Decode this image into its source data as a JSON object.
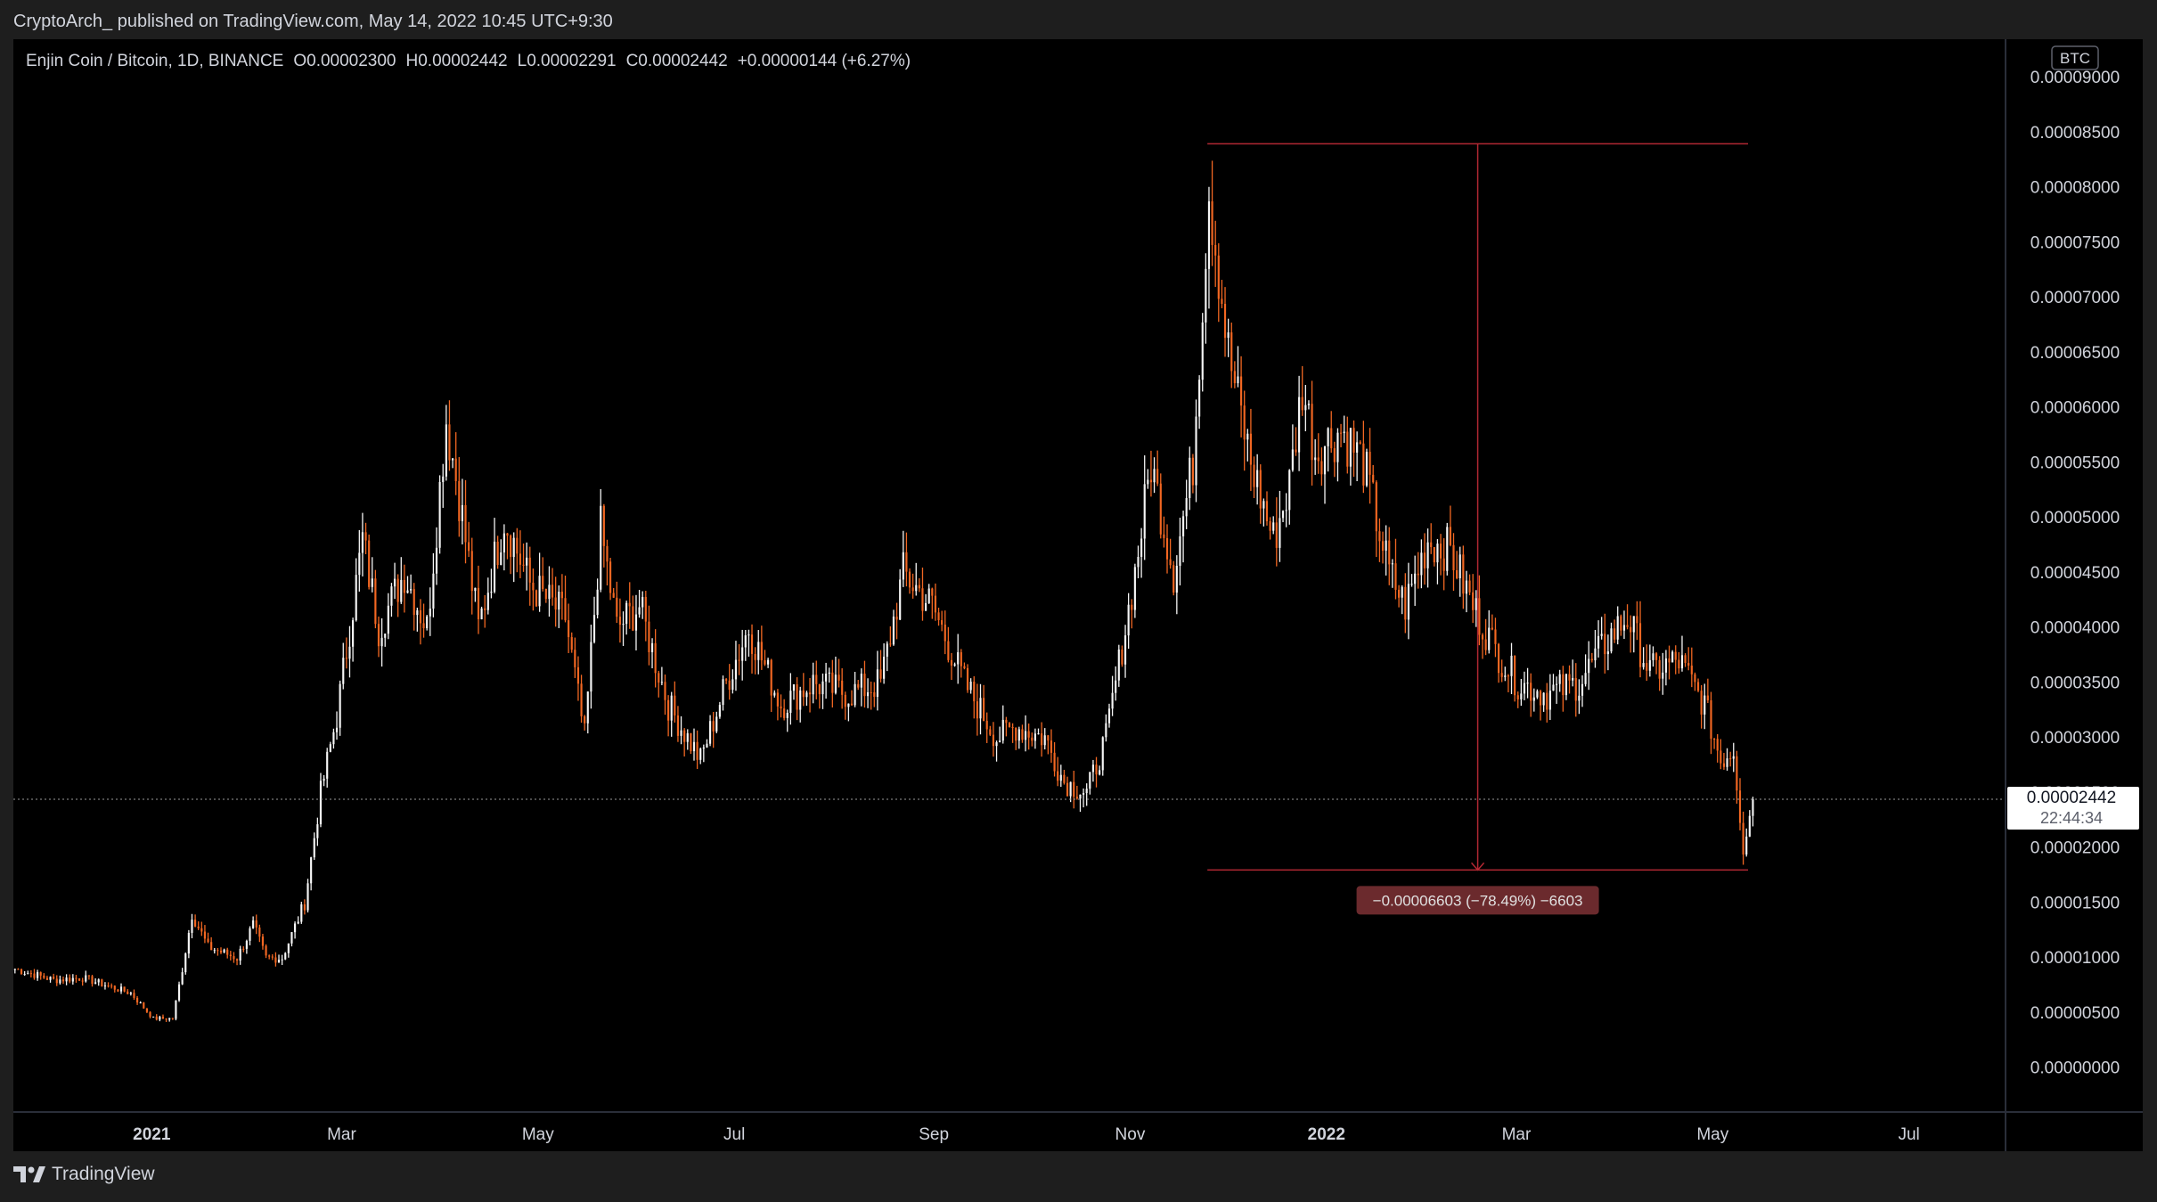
{
  "header": {
    "published_text": "CryptoArch_ published on TradingView.com, May 14, 2022 10:45 UTC+9:30"
  },
  "legend": {
    "symbol": "Enjin Coin / Bitcoin, 1D, BINANCE",
    "open": "O0.00002300",
    "high": "H0.00002442",
    "low": "L0.00002291",
    "close": "C0.00002442",
    "change": "+0.00000144 (+6.27%)"
  },
  "price_scale": {
    "currency_badge": "BTC",
    "labels": [
      "0.00009000",
      "0.00008500",
      "0.00008000",
      "0.00007500",
      "0.00007000",
      "0.00006500",
      "0.00006000",
      "0.00005500",
      "0.00005000",
      "0.00004500",
      "0.00004000",
      "0.00003500",
      "0.00003000",
      "0.00002500",
      "0.00002000",
      "0.00001500",
      "0.00001000",
      "0.00000500",
      "0.00000000"
    ],
    "last_price_label": "0.00002442",
    "countdown_label": "22:44:34"
  },
  "time_scale": {
    "labels": [
      {
        "text": "2021",
        "bold": true
      },
      {
        "text": "Mar",
        "bold": false
      },
      {
        "text": "May",
        "bold": false
      },
      {
        "text": "Jul",
        "bold": false
      },
      {
        "text": "Sep",
        "bold": false
      },
      {
        "text": "Nov",
        "bold": false
      },
      {
        "text": "2022",
        "bold": true
      },
      {
        "text": "Mar",
        "bold": false
      },
      {
        "text": "May",
        "bold": false
      },
      {
        "text": "Jul",
        "bold": false
      }
    ]
  },
  "measure_tool": {
    "label": "−0.00006603 (−78.49%) −6603",
    "top_price": 8.4e-05,
    "bottom_price": 1.8e-05,
    "color": "#b22833"
  },
  "footer": {
    "brand": "TradingView"
  },
  "colors": {
    "up": "#f5f5f5",
    "down": "#f26722",
    "background": "#000000",
    "frame": "#1e1e1e",
    "text": "#d1d4dc"
  },
  "chart_data": {
    "type": "candlestick",
    "title": "Enjin Coin / Bitcoin, 1D, BINANCE",
    "y_unit": "BTC",
    "ylim": [
      -4e-06,
      9.35e-05
    ],
    "x_range": [
      "2020-11-19",
      "2022-07-31"
    ],
    "interval": "1D",
    "last_close": 2.442e-05,
    "grid": false,
    "keypoints": [
      [
        "2020-11-19",
        9e-06
      ],
      [
        "2020-12-01",
        8e-06
      ],
      [
        "2020-12-10",
        8.2e-06
      ],
      [
        "2020-12-25",
        6.8e-06
      ],
      [
        "2021-01-01",
        4.5e-06
      ],
      [
        "2021-01-07",
        4.5e-06
      ],
      [
        "2021-01-10",
        9e-06
      ],
      [
        "2021-01-13",
        1.4e-05
      ],
      [
        "2021-01-18",
        1.1e-05
      ],
      [
        "2021-01-27",
        1e-05
      ],
      [
        "2021-02-01",
        1.3e-05
      ],
      [
        "2021-02-05",
        1e-05
      ],
      [
        "2021-02-10",
        1e-05
      ],
      [
        "2021-02-17",
        1.5e-05
      ],
      [
        "2021-02-22",
        2.5e-05
      ],
      [
        "2021-02-27",
        3.2e-05
      ],
      [
        "2021-03-07",
        4.8e-05
      ],
      [
        "2021-03-12",
        4e-05
      ],
      [
        "2021-03-20",
        4.5e-05
      ],
      [
        "2021-03-27",
        4e-05
      ],
      [
        "2021-04-02",
        5.9e-05
      ],
      [
        "2021-04-06",
        5.2e-05
      ],
      [
        "2021-04-12",
        4e-05
      ],
      [
        "2021-04-20",
        5e-05
      ],
      [
        "2021-04-28",
        4.4e-05
      ],
      [
        "2021-05-09",
        4.1e-05
      ],
      [
        "2021-05-15",
        3e-05
      ],
      [
        "2021-05-20",
        4.9e-05
      ],
      [
        "2021-05-25",
        4e-05
      ],
      [
        "2021-06-01",
        4.2e-05
      ],
      [
        "2021-06-10",
        3.3e-05
      ],
      [
        "2021-06-20",
        2.8e-05
      ],
      [
        "2021-06-28",
        3.5e-05
      ],
      [
        "2021-07-05",
        4e-05
      ],
      [
        "2021-07-15",
        3.3e-05
      ],
      [
        "2021-07-25",
        3.5e-05
      ],
      [
        "2021-08-05",
        3.4e-05
      ],
      [
        "2021-08-15",
        3.5e-05
      ],
      [
        "2021-08-22",
        4.5e-05
      ],
      [
        "2021-08-31",
        4.2e-05
      ],
      [
        "2021-09-10",
        3.5e-05
      ],
      [
        "2021-09-20",
        3e-05
      ],
      [
        "2021-09-26",
        3.1e-05
      ],
      [
        "2021-10-05",
        3e-05
      ],
      [
        "2021-10-11",
        2.6e-05
      ],
      [
        "2021-10-18",
        2.5e-05
      ],
      [
        "2021-10-24",
        3e-05
      ],
      [
        "2021-11-02",
        4.5e-05
      ],
      [
        "2021-11-07",
        5.5e-05
      ],
      [
        "2021-11-14",
        4.5e-05
      ],
      [
        "2021-11-20",
        5.5e-05
      ],
      [
        "2021-11-25",
        8e-05
      ],
      [
        "2021-12-01",
        6.5e-05
      ],
      [
        "2021-12-08",
        5.5e-05
      ],
      [
        "2021-12-15",
        4.8e-05
      ],
      [
        "2021-12-20",
        5.3e-05
      ],
      [
        "2021-12-24",
        6.2e-05
      ],
      [
        "2021-12-28",
        5.6e-05
      ],
      [
        "2022-01-05",
        5.8e-05
      ],
      [
        "2022-01-12",
        5.5e-05
      ],
      [
        "2022-01-20",
        4.5e-05
      ],
      [
        "2022-01-25",
        4.2e-05
      ],
      [
        "2022-02-01",
        4.8e-05
      ],
      [
        "2022-02-08",
        4.7e-05
      ],
      [
        "2022-02-15",
        4.2e-05
      ],
      [
        "2022-02-22",
        3.8e-05
      ],
      [
        "2022-03-01",
        3.5e-05
      ],
      [
        "2022-03-10",
        3.4e-05
      ],
      [
        "2022-03-20",
        3.5e-05
      ],
      [
        "2022-03-29",
        3.9e-05
      ],
      [
        "2022-04-04",
        4.1e-05
      ],
      [
        "2022-04-11",
        3.6e-05
      ],
      [
        "2022-04-20",
        3.7e-05
      ],
      [
        "2022-04-28",
        3.3e-05
      ],
      [
        "2022-05-03",
        2.8e-05
      ],
      [
        "2022-05-07",
        2.9e-05
      ],
      [
        "2022-05-10",
        2e-05
      ],
      [
        "2022-05-13",
        2.44e-05
      ]
    ]
  }
}
